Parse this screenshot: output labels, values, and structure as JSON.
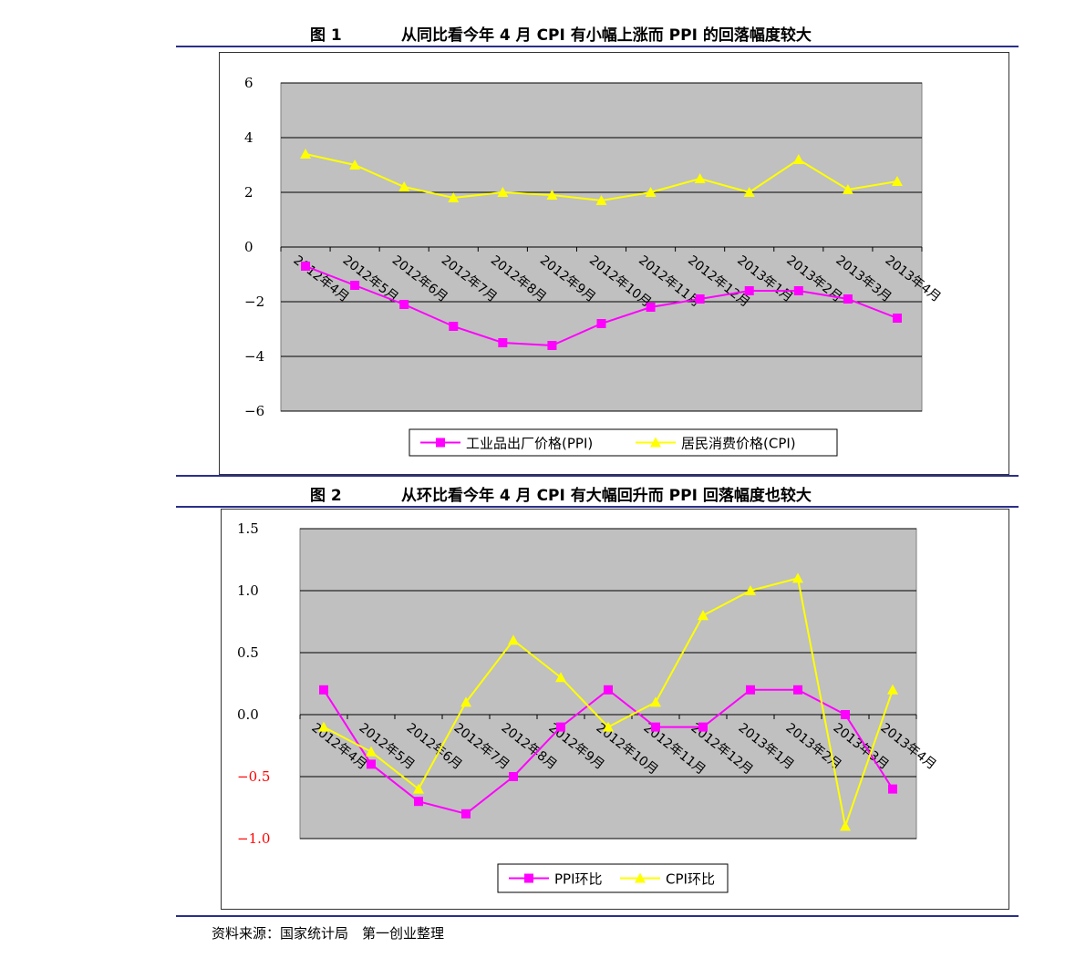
{
  "figure1": {
    "label": "图 1",
    "title": "从同比看今年 4 月 CPI 有小幅上涨而 PPI 的回落幅度较大"
  },
  "figure2": {
    "label": "图 2",
    "title": "从环比看今年 4 月 CPI 有大幅回升而 PPI 回落幅度也较大"
  },
  "source": "资料来源：国家统计局　第一创业整理",
  "colors": {
    "ppi": "#ff00ff",
    "cpi": "#ffff00",
    "plot_bg": "#c0c0c0",
    "negative_tick": "#ff0000",
    "rule": "#2b2f8a"
  },
  "chart_data": [
    {
      "type": "line",
      "categories": [
        "2012年4月",
        "2012年5月",
        "2012年6月",
        "2012年7月",
        "2012年8月",
        "2012年9月",
        "2012年10月",
        "2012年11月",
        "2012年12月",
        "2013年1月",
        "2013年2月",
        "2013年3月",
        "2013年4月"
      ],
      "series": [
        {
          "name": "工业品出厂价格(PPI)",
          "color": "#ff00ff",
          "marker": "square",
          "values": [
            -0.7,
            -1.4,
            -2.1,
            -2.9,
            -3.5,
            -3.6,
            -2.8,
            -2.2,
            -1.9,
            -1.6,
            -1.6,
            -1.9,
            -2.6
          ]
        },
        {
          "name": "居民消费价格(CPI)",
          "color": "#ffff00",
          "marker": "triangle",
          "values": [
            3.4,
            3.0,
            2.2,
            1.8,
            2.0,
            1.9,
            1.7,
            2.0,
            2.5,
            2.0,
            3.2,
            2.1,
            2.4
          ]
        }
      ],
      "yticks": [
        "6",
        "4",
        "2",
        "0",
        "-2",
        "-4",
        "-6"
      ],
      "ylim": [
        -6,
        6
      ],
      "grid": true,
      "legend": "bottom"
    },
    {
      "type": "line",
      "categories": [
        "2012年4月",
        "2012年5月",
        "2012年6月",
        "2012年7月",
        "2012年8月",
        "2012年9月",
        "2012年10月",
        "2012年11月",
        "2012年12月",
        "2013年1月",
        "2013年2月",
        "2013年3月",
        "2013年4月"
      ],
      "series": [
        {
          "name": "PPI环比",
          "color": "#ff00ff",
          "marker": "square",
          "values": [
            0.2,
            -0.4,
            -0.7,
            -0.8,
            -0.5,
            -0.1,
            0.2,
            -0.1,
            -0.1,
            0.2,
            0.2,
            0.0,
            -0.6
          ]
        },
        {
          "name": "CPI环比",
          "color": "#ffff00",
          "marker": "triangle",
          "values": [
            -0.1,
            -0.3,
            -0.6,
            0.1,
            0.6,
            0.3,
            -0.1,
            0.1,
            0.8,
            1.0,
            1.1,
            -0.9,
            0.2
          ]
        }
      ],
      "yticks": [
        "1.5",
        "1.0",
        "0.5",
        "0.0",
        "-0.5",
        "-1.0"
      ],
      "ylim": [
        -1.0,
        1.5
      ],
      "grid": true,
      "legend": "bottom"
    }
  ]
}
